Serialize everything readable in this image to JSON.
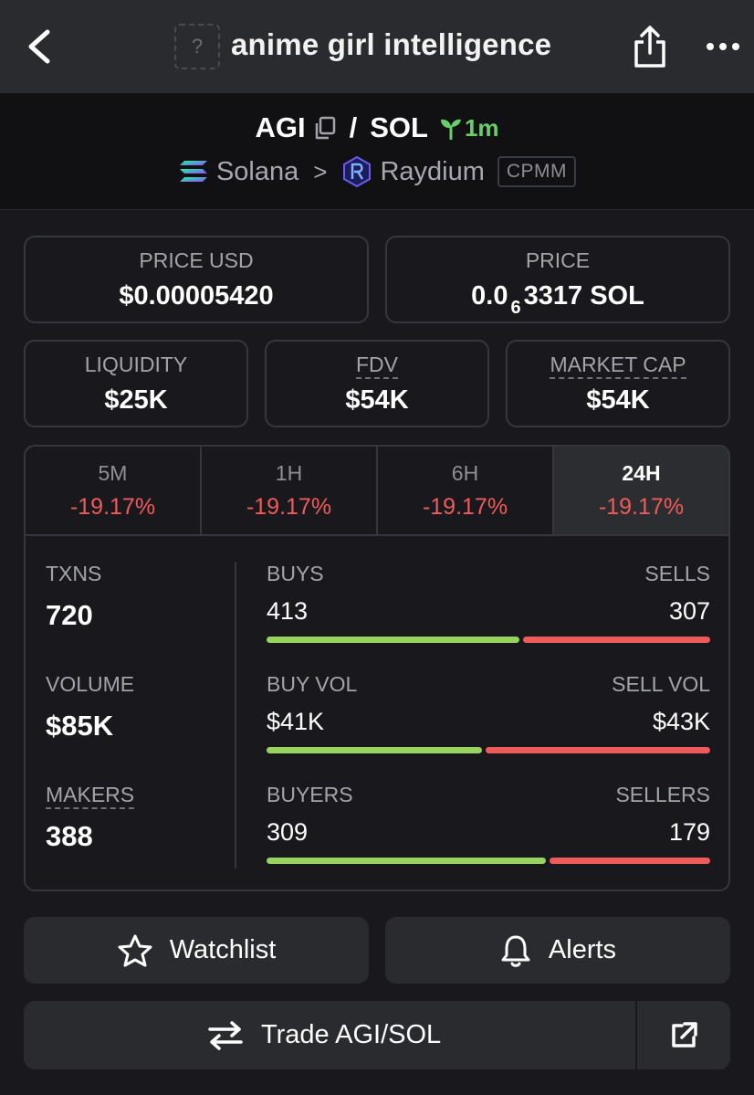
{
  "header": {
    "token_image_placeholder": "?",
    "title": "anime girl intelligence"
  },
  "pair": {
    "base": "AGI",
    "separator": "/",
    "quote": "SOL",
    "age": "1m",
    "chain": "Solana",
    "dex": "Raydium",
    "pool_type": "CPMM"
  },
  "prices": {
    "price_usd_label": "PRICE USD",
    "price_usd_value": "$0.00005420",
    "price_label": "PRICE",
    "price_prefix": "0.0",
    "price_zeros": "6",
    "price_digits": "3317 SOL"
  },
  "metrics": {
    "liquidity_label": "LIQUIDITY",
    "liquidity_value": "$25K",
    "fdv_label": "FDV",
    "fdv_value": "$54K",
    "mcap_label": "MARKET CAP",
    "mcap_value": "$54K"
  },
  "timeframes": [
    {
      "label": "5M",
      "change": "-19.17%"
    },
    {
      "label": "1H",
      "change": "-19.17%"
    },
    {
      "label": "6H",
      "change": "-19.17%"
    },
    {
      "label": "24H",
      "change": "-19.17%"
    }
  ],
  "stats": {
    "txns_label": "TXNS",
    "txns_value": "720",
    "volume_label": "VOLUME",
    "volume_value": "$85K",
    "makers_label": "MAKERS",
    "makers_value": "388",
    "buys_label": "BUYS",
    "sells_label": "SELLS",
    "buys_value": "413",
    "sells_value": "307",
    "buys_fraction": 0.574,
    "buyvol_label": "BUY VOL",
    "sellvol_label": "SELL VOL",
    "buyvol_value": "$41K",
    "sellvol_value": "$43K",
    "buyvol_fraction": 0.49,
    "buyers_label": "BUYERS",
    "sellers_label": "SELLERS",
    "buyers_value": "309",
    "sellers_value": "179",
    "buyers_fraction": 0.633
  },
  "actions": {
    "watchlist_label": "Watchlist",
    "alerts_label": "Alerts",
    "trade_label": "Trade AGI/SOL"
  },
  "colors": {
    "positive": "#96d35f",
    "negative": "#ef5a5a",
    "age_green": "#66cf6b"
  }
}
